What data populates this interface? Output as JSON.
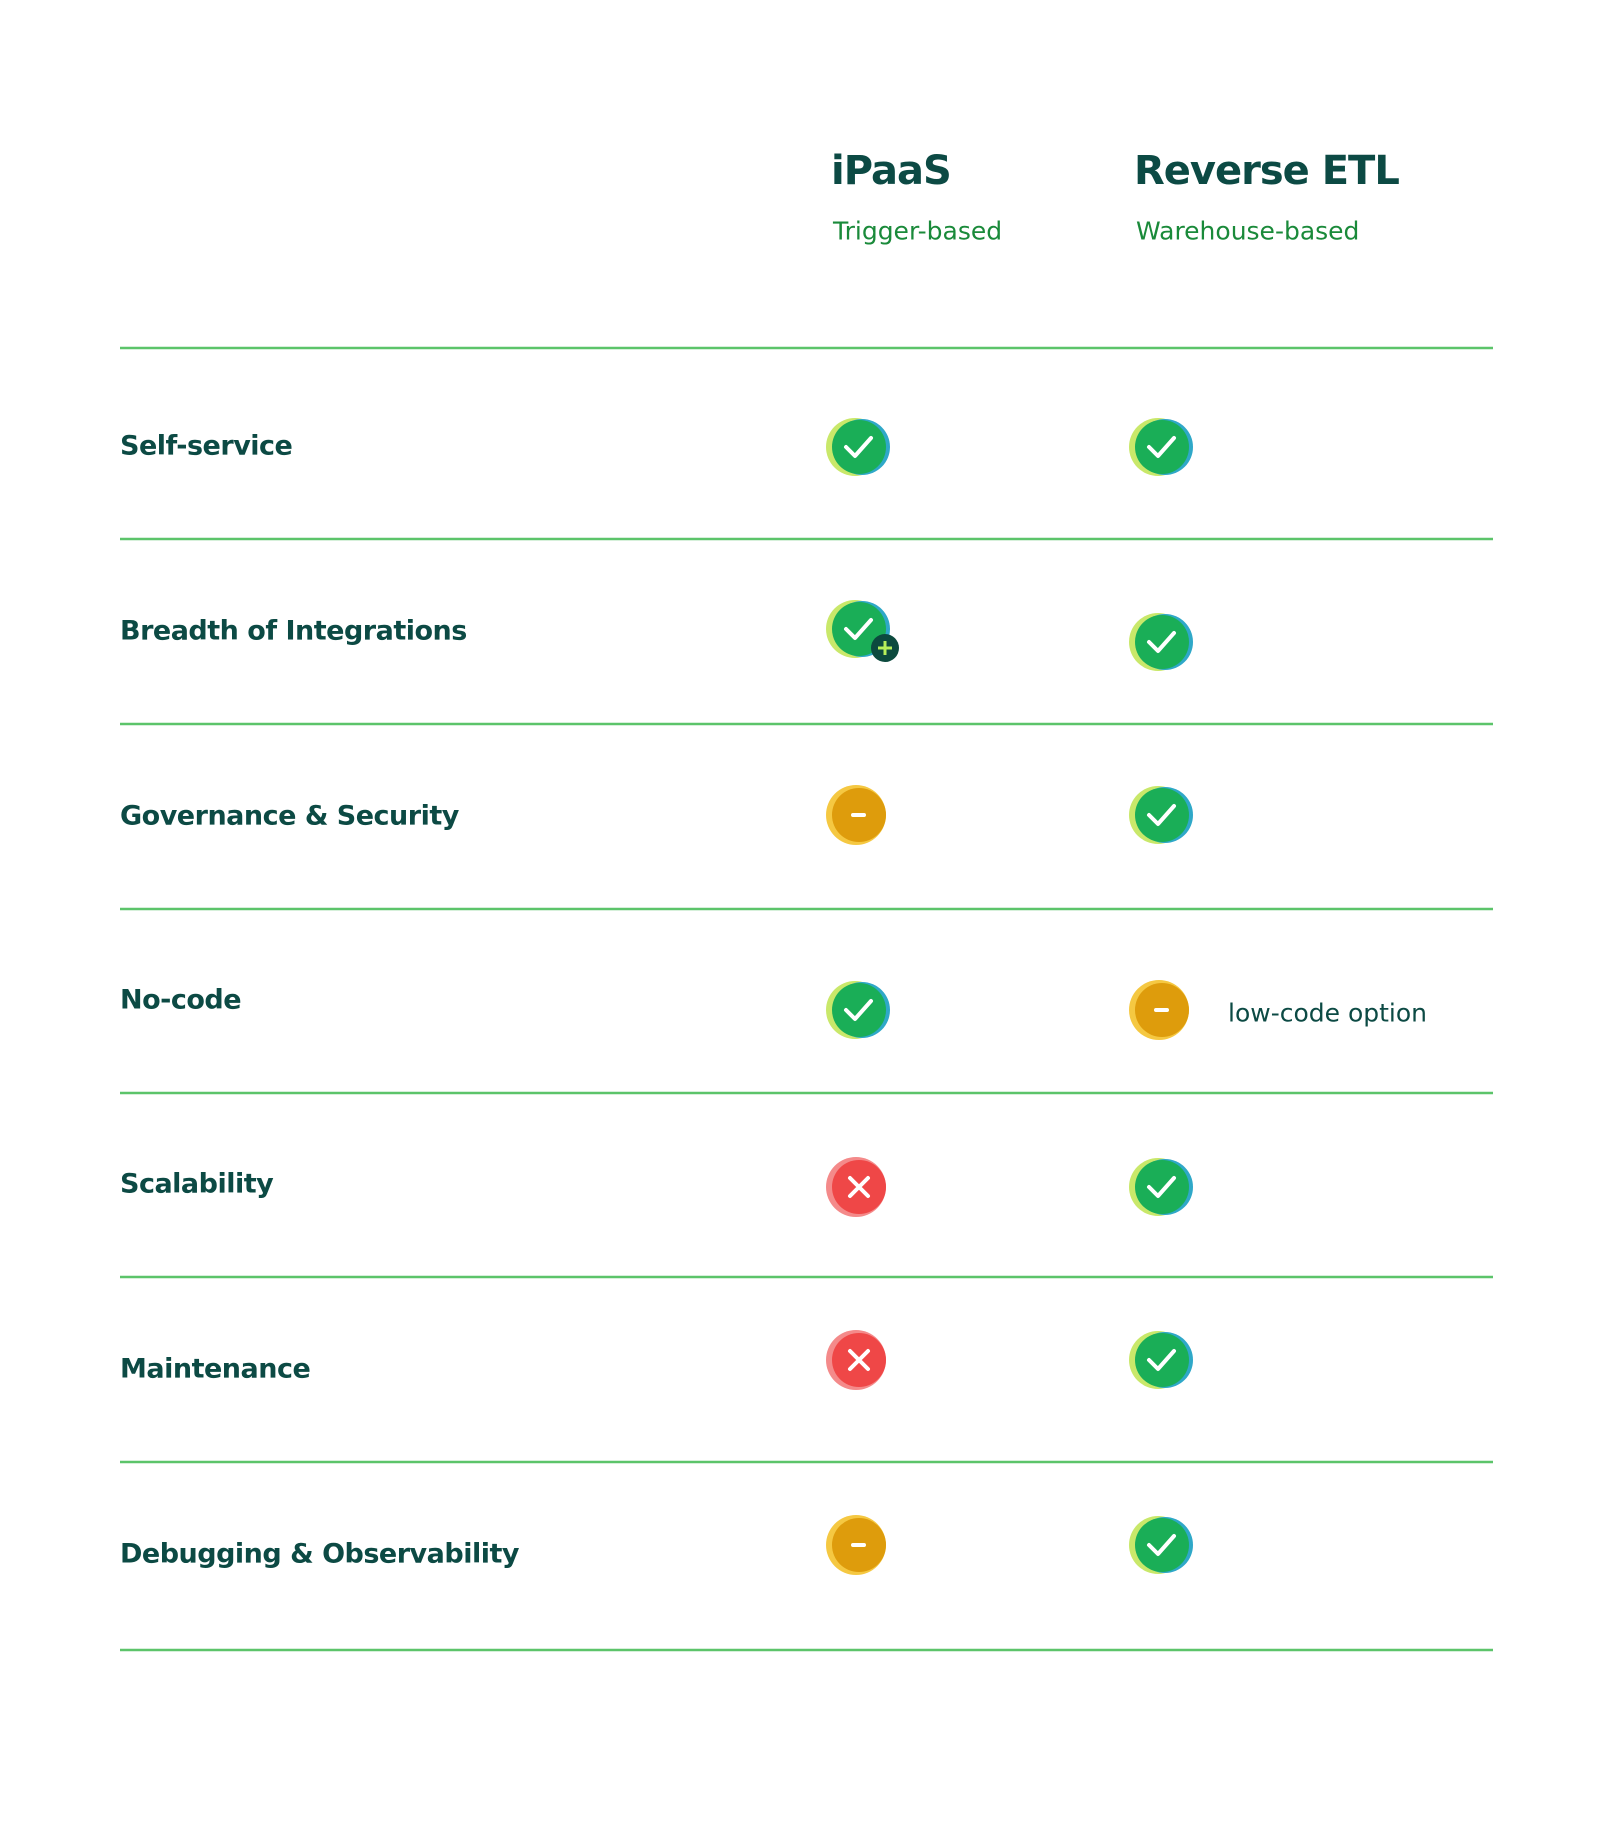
{
  "header": {
    "columns": [
      {
        "title": "iPaaS",
        "subtitle": "Trigger-based"
      },
      {
        "title": "Reverse ETL",
        "subtitle": "Warehouse-based"
      }
    ]
  },
  "rows": [
    {
      "label": "Self-service"
    },
    {
      "label": "Breadth of Integrations"
    },
    {
      "label": "Governance & Security"
    },
    {
      "label": "No-code",
      "note": "low-code option"
    },
    {
      "label": "Scalability"
    },
    {
      "label": "Maintenance"
    },
    {
      "label": "Debugging & Observability"
    }
  ]
}
